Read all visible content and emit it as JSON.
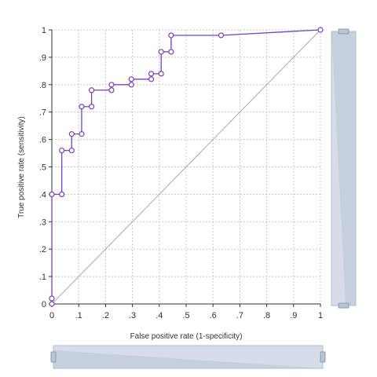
{
  "chart_data": {
    "type": "line",
    "xlabel": "False positive rate (1-specificity)",
    "ylabel": "True positive rate (sensitivity)",
    "xlim": [
      0,
      1
    ],
    "ylim": [
      0,
      1
    ],
    "x_ticks": [
      0,
      0.1,
      0.2,
      0.3,
      0.4,
      0.5,
      0.6,
      0.7,
      0.8,
      0.9,
      1
    ],
    "x_tick_labels": [
      "0",
      ".1",
      ".2",
      ".3",
      ".4",
      ".5",
      ".6",
      ".7",
      ".8",
      ".9",
      "1"
    ],
    "y_ticks": [
      0,
      0.1,
      0.2,
      0.3,
      0.4,
      0.5,
      0.6,
      0.7,
      0.8,
      0.9,
      1
    ],
    "y_tick_labels": [
      "0",
      ".1",
      ".2",
      ".3",
      ".4",
      ".5",
      ".6",
      ".7",
      ".8",
      ".9",
      "1"
    ],
    "grid": true,
    "series": [
      {
        "color": "#7b3fbf",
        "x": [
          0,
          0,
          0,
          0.037,
          0.037,
          0.074,
          0.074,
          0.111,
          0.111,
          0.148,
          0.148,
          0.222,
          0.222,
          0.296,
          0.296,
          0.37,
          0.37,
          0.407,
          0.407,
          0.444,
          0.444,
          0.63,
          1
        ],
        "y": [
          0,
          0.02,
          0.4,
          0.4,
          0.56,
          0.56,
          0.62,
          0.62,
          0.72,
          0.72,
          0.78,
          0.78,
          0.8,
          0.8,
          0.82,
          0.82,
          0.84,
          0.84,
          0.92,
          0.92,
          0.98,
          0.98,
          1
        ]
      },
      {
        "color": "#aaaaaa",
        "x": [
          0,
          1
        ],
        "y": [
          0,
          1
        ]
      }
    ]
  },
  "colors": {
    "grid": "#c8c8c8",
    "axis": "#333333",
    "scroll_track": "#d6dde8",
    "scroll_border": "#b4bfcd",
    "scroll_handle": "#b9c4d2"
  }
}
